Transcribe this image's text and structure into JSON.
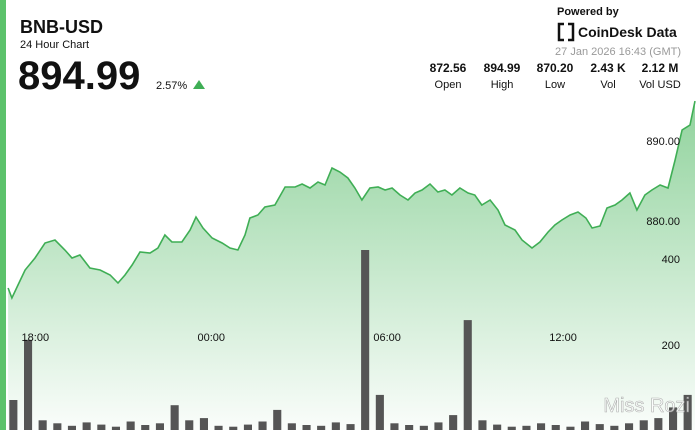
{
  "chart_data": {
    "type": "line",
    "title": "BNB-USD",
    "subtitle": "24 Hour Chart",
    "last_price": "894.99",
    "change": "2.57%",
    "powered_by": "Powered by",
    "brand": "CoinDesk Data",
    "timestamp": "27 Jan 2026 16:43 (GMT)",
    "watermark": "Miss Rozi",
    "stats": [
      {
        "value": "872.56",
        "label": "Open"
      },
      {
        "value": "894.99",
        "label": "High"
      },
      {
        "value": "870.20",
        "label": "Low"
      },
      {
        "value": "2.43 K",
        "label": "Vol"
      },
      {
        "value": "2.12 M",
        "label": "Vol USD"
      }
    ],
    "color": "#3fae55",
    "x": [
      17.07,
      17.2,
      17.41,
      17.65,
      17.99,
      18.33,
      18.67,
      19.01,
      19.25,
      19.52,
      19.86,
      20.21,
      20.55,
      20.82,
      21.06,
      21.3,
      21.57,
      21.91,
      22.18,
      22.42,
      22.66,
      23.0,
      23.28,
      23.48,
      23.72,
      24.03,
      24.37,
      24.64,
      24.91,
      25.15,
      25.32,
      25.59,
      25.83,
      26.17,
      26.52,
      26.86,
      27.1,
      27.37,
      27.64,
      27.88,
      28.12,
      28.39,
      28.66,
      28.9,
      29.14,
      29.41,
      29.69,
      29.93,
      30.17,
      30.44,
      30.71,
      30.95,
      31.19,
      31.46,
      31.73,
      31.97,
      32.21,
      32.48,
      32.76,
      32.99,
      33.23,
      33.51,
      33.78,
      34.02,
      34.36,
      34.6,
      34.94,
      35.21,
      35.49,
      35.72,
      35.96,
      36.24,
      36.51,
      36.78,
      36.99,
      37.26,
      37.5,
      37.77,
      38.01,
      38.28,
      38.52,
      38.79,
      39.03,
      39.31,
      39.58,
      39.82,
      40.06,
      40.33,
      40.5
    ],
    "values": [
      871.63,
      870.38,
      872.0,
      873.88,
      875.38,
      877.25,
      877.63,
      876.38,
      875.38,
      875.75,
      874.13,
      873.88,
      873.25,
      872.25,
      873.25,
      874.5,
      876.13,
      876.0,
      876.63,
      878.25,
      877.38,
      877.38,
      878.88,
      880.5,
      879.13,
      877.88,
      877.25,
      876.63,
      876.38,
      878.25,
      880.38,
      880.75,
      881.75,
      882.0,
      884.25,
      884.25,
      884.63,
      884.13,
      884.88,
      884.5,
      886.63,
      886.13,
      885.38,
      884.13,
      882.63,
      884.13,
      884.25,
      883.88,
      884.13,
      883.25,
      882.63,
      883.5,
      883.88,
      884.63,
      883.63,
      883.88,
      883.25,
      884.13,
      883.5,
      883.25,
      882.0,
      882.63,
      881.38,
      879.5,
      878.88,
      877.63,
      876.63,
      877.38,
      878.63,
      879.5,
      880.13,
      880.75,
      881.13,
      880.38,
      879.13,
      879.38,
      881.63,
      882.0,
      882.63,
      883.5,
      881.38,
      883.25,
      883.88,
      884.5,
      884.13,
      887.63,
      891.38,
      892.0,
      894.99
    ],
    "xlim": [
      17,
      40.5
    ],
    "xticks": [
      {
        "value": 18,
        "label": "18:00"
      },
      {
        "value": 24,
        "label": "00:00"
      },
      {
        "value": 30,
        "label": "06:00"
      },
      {
        "value": 36,
        "label": "12:00"
      }
    ],
    "ylim": [
      870,
      895
    ],
    "yticks": [
      {
        "value": 880,
        "label": "880.00"
      },
      {
        "value": 890,
        "label": "890.00"
      }
    ],
    "volume": {
      "axis": "y2",
      "color": "#555555",
      "x": [
        17.25,
        17.75,
        18.25,
        18.75,
        19.25,
        19.75,
        20.25,
        20.75,
        21.25,
        21.75,
        22.25,
        22.75,
        23.25,
        23.75,
        24.25,
        24.75,
        25.25,
        25.75,
        26.25,
        26.75,
        27.25,
        27.75,
        28.25,
        28.75,
        29.25,
        29.75,
        30.25,
        30.75,
        31.25,
        31.75,
        32.25,
        32.75,
        33.25,
        33.75,
        34.25,
        34.75,
        35.25,
        35.75,
        36.25,
        36.75,
        37.25,
        37.75,
        38.25,
        38.75,
        39.25,
        39.75,
        40.25
      ],
      "values": [
        72,
        212,
        25,
        18,
        12,
        20,
        15,
        10,
        22,
        14,
        18,
        60,
        25,
        30,
        12,
        10,
        15,
        22,
        49,
        18,
        14,
        12,
        20,
        16,
        421,
        84,
        18,
        14,
        12,
        20,
        37,
        258,
        25,
        15,
        10,
        12,
        18,
        14,
        10,
        22,
        16,
        12,
        18,
        25,
        30,
        55,
        84
      ]
    },
    "y2lim": [
      0,
      1000
    ],
    "y2ticks": [
      200,
      400
    ]
  }
}
